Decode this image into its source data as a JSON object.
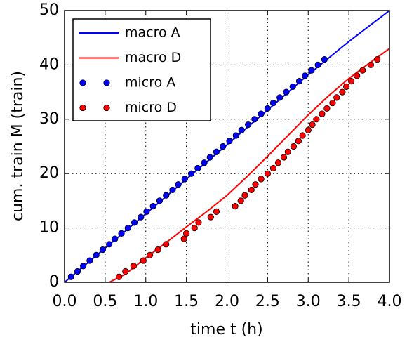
{
  "chart_data": {
    "type": "line",
    "xlabel": "time t (h)",
    "ylabel": "cum. train M (train)",
    "xlim": [
      0,
      4
    ],
    "ylim": [
      0,
      50
    ],
    "xticks": [
      {
        "value": 0,
        "label": "0.0"
      },
      {
        "value": 0.5,
        "label": "0.5"
      },
      {
        "value": 1,
        "label": "1.0"
      },
      {
        "value": 1.5,
        "label": "1.5"
      },
      {
        "value": 2,
        "label": "2.0"
      },
      {
        "value": 2.5,
        "label": "2.5"
      },
      {
        "value": 3,
        "label": "3.0"
      },
      {
        "value": 3.5,
        "label": "3.5"
      },
      {
        "value": 4,
        "label": "4.0"
      }
    ],
    "yticks": [
      0,
      10,
      20,
      30,
      40,
      50
    ],
    "grid": true,
    "legend": "upper left",
    "series": [
      {
        "name": "macro A",
        "color": "#0000ff",
        "mode": "line",
        "x": [
          0,
          0.5,
          1,
          1.5,
          2,
          2.5,
          3,
          3.5,
          4
        ],
        "values": [
          0,
          6.3,
          12.6,
          19,
          25.3,
          31.7,
          38.2,
          44.3,
          50
        ]
      },
      {
        "name": "macro D",
        "color": "#ff0000",
        "mode": "line",
        "x": [
          0.55,
          0.75,
          1,
          1.25,
          1.5,
          1.75,
          2,
          2.25,
          2.5,
          2.75,
          3,
          3.25,
          3.5,
          3.75,
          4
        ],
        "values": [
          0,
          1.5,
          4.5,
          7.3,
          10.2,
          13,
          16,
          19.5,
          23.2,
          27,
          30.8,
          34.3,
          37.5,
          40.3,
          43
        ]
      },
      {
        "name": "micro A",
        "color": "#0000ff",
        "mode": "marker",
        "x": [
          0.08,
          0.16,
          0.23,
          0.31,
          0.39,
          0.47,
          0.55,
          0.62,
          0.7,
          0.78,
          0.86,
          0.94,
          1.01,
          1.09,
          1.17,
          1.25,
          1.33,
          1.4,
          1.48,
          1.56,
          1.64,
          1.72,
          1.79,
          1.87,
          1.95,
          2.03,
          2.11,
          2.18,
          2.26,
          2.34,
          2.42,
          2.5,
          2.57,
          2.65,
          2.73,
          2.81,
          2.89,
          2.96,
          3.04,
          3.12,
          3.2
        ],
        "values": [
          1,
          2,
          3,
          4,
          5,
          6,
          7,
          8,
          9,
          10,
          11,
          12,
          13,
          14,
          15,
          16,
          17,
          18,
          19,
          20,
          21,
          22,
          23,
          24,
          25,
          26,
          27,
          28,
          29,
          30,
          31,
          32,
          33,
          34,
          35,
          36,
          37,
          38,
          39,
          40,
          41
        ]
      },
      {
        "name": "micro D",
        "color": "#ff0000",
        "mode": "marker",
        "x": [
          0.67,
          0.75,
          0.85,
          0.97,
          1.05,
          1.15,
          1.25,
          1.47,
          1.5,
          1.6,
          1.65,
          1.8,
          1.87,
          2.1,
          2.17,
          2.22,
          2.3,
          2.35,
          2.42,
          2.5,
          2.57,
          2.63,
          2.7,
          2.75,
          2.82,
          2.88,
          2.93,
          3.0,
          3.05,
          3.1,
          3.17,
          3.23,
          3.3,
          3.35,
          3.42,
          3.47,
          3.53,
          3.6,
          3.67,
          3.77,
          3.85
        ],
        "values": [
          1,
          2,
          3,
          4,
          5,
          6,
          7,
          8,
          9,
          10,
          11,
          12,
          13,
          14,
          15,
          16,
          17,
          18,
          19,
          20,
          21,
          22,
          23,
          24,
          25,
          26,
          27,
          28,
          29,
          30,
          31,
          32,
          33,
          34,
          35,
          36,
          37,
          38,
          39,
          40,
          41
        ]
      }
    ]
  }
}
